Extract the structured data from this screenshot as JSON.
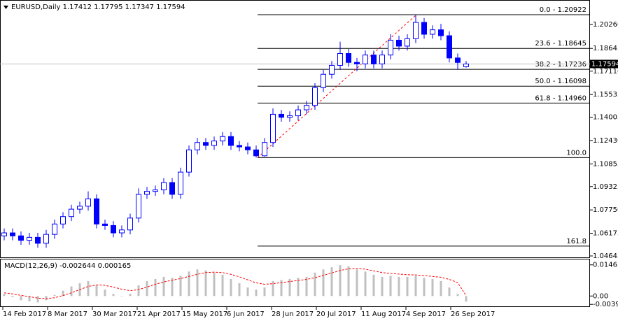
{
  "chart_data": [
    {
      "type": "candlestick",
      "title": "EURUSD,Daily  1.17412 1.17795 1.17347 1.17594",
      "color": "#0000ff",
      "open": [
        1.06,
        1.062,
        1.06,
        1.057,
        1.059,
        1.055,
        1.061,
        1.068,
        1.073,
        1.078,
        1.08,
        1.085,
        1.068,
        1.067,
        1.062,
        1.064,
        1.072,
        1.088,
        1.09,
        1.091,
        1.096,
        1.088,
        1.103,
        1.118,
        1.123,
        1.121,
        1.124,
        1.127,
        1.121,
        1.12,
        1.118,
        1.114,
        1.123,
        1.142,
        1.14,
        1.141,
        1.145,
        1.148,
        1.16,
        1.169,
        1.175,
        1.183,
        1.177,
        1.176,
        1.182,
        1.176,
        1.182,
        1.192,
        1.188,
        1.193,
        1.204,
        1.196,
        1.199,
        1.195,
        1.18,
        1.17412
      ],
      "high": [
        1.065,
        1.065,
        1.063,
        1.062,
        1.062,
        1.064,
        1.071,
        1.076,
        1.081,
        1.083,
        1.09,
        1.088,
        1.071,
        1.07,
        1.067,
        1.075,
        1.092,
        1.093,
        1.094,
        1.099,
        1.099,
        1.106,
        1.121,
        1.126,
        1.126,
        1.127,
        1.13,
        1.13,
        1.124,
        1.123,
        1.121,
        1.126,
        1.146,
        1.145,
        1.144,
        1.148,
        1.151,
        1.163,
        1.172,
        1.178,
        1.191,
        1.186,
        1.18,
        1.185,
        1.185,
        1.185,
        1.196,
        1.195,
        1.196,
        1.2092,
        1.207,
        1.202,
        1.203,
        1.198,
        1.183,
        1.17795
      ],
      "low": [
        1.057,
        1.057,
        1.054,
        1.054,
        1.052,
        1.052,
        1.058,
        1.065,
        1.07,
        1.075,
        1.077,
        1.065,
        1.064,
        1.059,
        1.059,
        1.061,
        1.069,
        1.085,
        1.087,
        1.088,
        1.085,
        1.085,
        1.1,
        1.115,
        1.118,
        1.118,
        1.121,
        1.118,
        1.117,
        1.115,
        1.1128,
        1.1135,
        1.12,
        1.137,
        1.137,
        1.138,
        1.142,
        1.145,
        1.157,
        1.166,
        1.172,
        1.174,
        1.171,
        1.173,
        1.173,
        1.173,
        1.179,
        1.185,
        1.185,
        1.19,
        1.193,
        1.193,
        1.192,
        1.177,
        1.172,
        1.17347
      ],
      "close": [
        1.062,
        1.06,
        1.057,
        1.059,
        1.055,
        1.061,
        1.068,
        1.073,
        1.078,
        1.08,
        1.085,
        1.068,
        1.067,
        1.062,
        1.064,
        1.072,
        1.088,
        1.09,
        1.091,
        1.096,
        1.088,
        1.103,
        1.118,
        1.123,
        1.121,
        1.124,
        1.127,
        1.121,
        1.12,
        1.118,
        1.114,
        1.123,
        1.142,
        1.14,
        1.141,
        1.145,
        1.148,
        1.16,
        1.169,
        1.175,
        1.183,
        1.177,
        1.176,
        1.182,
        1.176,
        1.182,
        1.192,
        1.188,
        1.193,
        1.204,
        1.196,
        1.199,
        1.195,
        1.18,
        1.177,
        1.17594
      ],
      "ylim": [
        1.0455,
        1.2191
      ],
      "yticks": [
        {
          "value": 1.2026,
          "label": "1.20260"
        },
        1.18645,
        {
          "value": 1.1711,
          "label": "1.17110"
        },
        1.15535,
        {
          "value": 1.14005,
          "label": "1.14005"
        },
        {
          "value": 1.1243,
          "label": "1.12430"
        },
        1.10855,
        1.09325,
        {
          "value": 1.0775,
          "label": "1.07750"
        },
        1.06175,
        1.04645
      ],
      "current_price": {
        "value": 1.17594,
        "label": "1.17594"
      },
      "fibonacci": [
        {
          "value": 1.20922,
          "label": "0.0 - 1.20922"
        },
        {
          "value": 1.18645,
          "label": "23.6 - 1.18645"
        },
        {
          "value": 1.17236,
          "label": "38.2 - 1.17236"
        },
        {
          "value": 1.16098,
          "label": "50.0 - 1.16098"
        },
        {
          "value": 1.1496,
          "label": "61.8 - 1.14960"
        },
        {
          "value": 1.1128,
          "label": "100.0"
        },
        {
          "value": 1.0531,
          "label": "161.8"
        }
      ],
      "fib_color": "#000000",
      "trend_color": "#ff0000",
      "date_labels": [
        "14 Feb 2017",
        "8 Mar 2017",
        "30 Mar 2017",
        "21 Apr 2017",
        "15 May 2017",
        "6 Jun 2017",
        "28 Jun 2017",
        "20 Jul 2017",
        "11 Aug 2017",
        "4 Sep 2017",
        "26 Sep 2017"
      ]
    },
    {
      "type": "macd",
      "title": "MACD(12,26,9) -0.002644 0.000165",
      "series": [
        {
          "color": "#c0c0c0",
          "values": [
            0.001,
            -0.0005,
            -0.002,
            -0.0025,
            -0.003,
            -0.002,
            0.0005,
            0.0025,
            0.0045,
            0.006,
            0.007,
            0.005,
            0.003,
            0.001,
            0.0,
            0.001,
            0.005,
            0.007,
            0.008,
            0.009,
            0.0085,
            0.0095,
            0.0115,
            0.0125,
            0.012,
            0.011,
            0.01,
            0.008,
            0.006,
            0.004,
            0.003,
            0.004,
            0.007,
            0.0075,
            0.008,
            0.0085,
            0.009,
            0.011,
            0.0125,
            0.0135,
            0.0145,
            0.014,
            0.0125,
            0.0115,
            0.01,
            0.009,
            0.0095,
            0.009,
            0.009,
            0.0095,
            0.0085,
            0.008,
            0.007,
            0.004,
            0.001,
            -0.002644
          ]
        },
        {
          "color": "#ff0000",
          "values": [
            0.0015,
            0.001,
            0.0003,
            -0.0003,
            -0.001,
            -0.0013,
            -0.0008,
            0.0002,
            0.0015,
            0.003,
            0.0045,
            0.0052,
            0.005,
            0.0042,
            0.0032,
            0.0025,
            0.003,
            0.0042,
            0.0055,
            0.0066,
            0.0074,
            0.0082,
            0.0092,
            0.0102,
            0.011,
            0.0112,
            0.011,
            0.0102,
            0.009,
            0.0076,
            0.0062,
            0.0055,
            0.0058,
            0.0063,
            0.0068,
            0.0073,
            0.0078,
            0.0086,
            0.0097,
            0.0108,
            0.012,
            0.0128,
            0.013,
            0.0126,
            0.0118,
            0.011,
            0.0106,
            0.0103,
            0.01,
            0.0099,
            0.0096,
            0.0092,
            0.0088,
            0.0078,
            0.0063,
            0.000165
          ]
        }
      ],
      "ylim": [
        -0.0055,
        0.0175
      ],
      "yticks": [
        0.01463,
        {
          "value": 0,
          "label": "0.00"
        },
        -0.003929
      ]
    }
  ]
}
